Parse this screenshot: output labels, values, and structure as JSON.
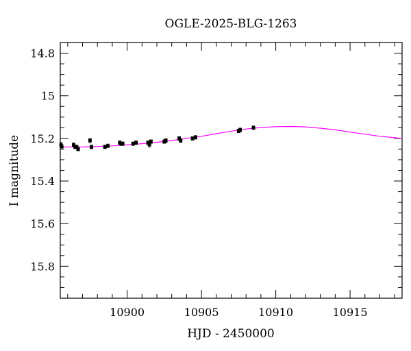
{
  "chart_data": {
    "type": "scatter",
    "title": "OGLE-2025-BLG-1263",
    "xlabel": "HJD - 2450000",
    "ylabel": "I magnitude",
    "xlim": [
      10895.5,
      10918.5
    ],
    "ylim": [
      15.95,
      14.75
    ],
    "y_inverted": true,
    "x_ticks": [
      10900,
      10905,
      10910,
      10915
    ],
    "x_tick_labels": [
      "10900",
      "10905",
      "10910",
      "10915"
    ],
    "y_ticks": [
      14.8,
      15,
      15.2,
      15.4,
      15.6,
      15.8
    ],
    "y_tick_labels": [
      "14.8",
      "15",
      "15.2",
      "15.4",
      "15.6",
      "15.8"
    ],
    "grid": false,
    "series": [
      {
        "kind": "points",
        "color": "#000000",
        "x": [
          10895.55,
          10895.6,
          10896.4,
          10896.5,
          10896.6,
          10896.7,
          10897.5,
          10897.6,
          10898.5,
          10898.7,
          10899.5,
          10899.6,
          10899.7,
          10900.4,
          10900.6,
          10901.4,
          10901.5,
          10901.6,
          10902.5,
          10902.6,
          10903.5,
          10903.6,
          10904.4,
          10904.6,
          10907.5,
          10907.6,
          10908.5
        ],
        "y": [
          15.23,
          15.24,
          15.23,
          15.24,
          15.24,
          15.25,
          15.21,
          15.24,
          15.24,
          15.235,
          15.22,
          15.225,
          15.225,
          15.225,
          15.22,
          15.22,
          15.23,
          15.215,
          15.215,
          15.21,
          15.2,
          15.21,
          15.2,
          15.195,
          15.165,
          15.16,
          15.15
        ],
        "yerr": [
          0.01,
          0.01,
          0.008,
          0.008,
          0.008,
          0.008,
          0.01,
          0.008,
          0.008,
          0.008,
          0.008,
          0.008,
          0.008,
          0.008,
          0.008,
          0.008,
          0.01,
          0.008,
          0.008,
          0.008,
          0.008,
          0.008,
          0.008,
          0.008,
          0.008,
          0.008,
          0.008
        ]
      },
      {
        "kind": "model",
        "color": "#ff00ff",
        "x": [
          10895.5,
          10897,
          10898,
          10899,
          10900,
          10901,
          10902,
          10903,
          10904,
          10905,
          10906,
          10907,
          10908,
          10909,
          10910,
          10911,
          10912,
          10913,
          10914,
          10915,
          10916,
          10917,
          10918.5
        ],
        "y": [
          15.24,
          15.24,
          15.238,
          15.235,
          15.23,
          15.225,
          15.218,
          15.21,
          15.2,
          15.19,
          15.178,
          15.166,
          15.156,
          15.149,
          15.145,
          15.144,
          15.146,
          15.152,
          15.16,
          15.17,
          15.18,
          15.19,
          15.2
        ]
      }
    ]
  }
}
